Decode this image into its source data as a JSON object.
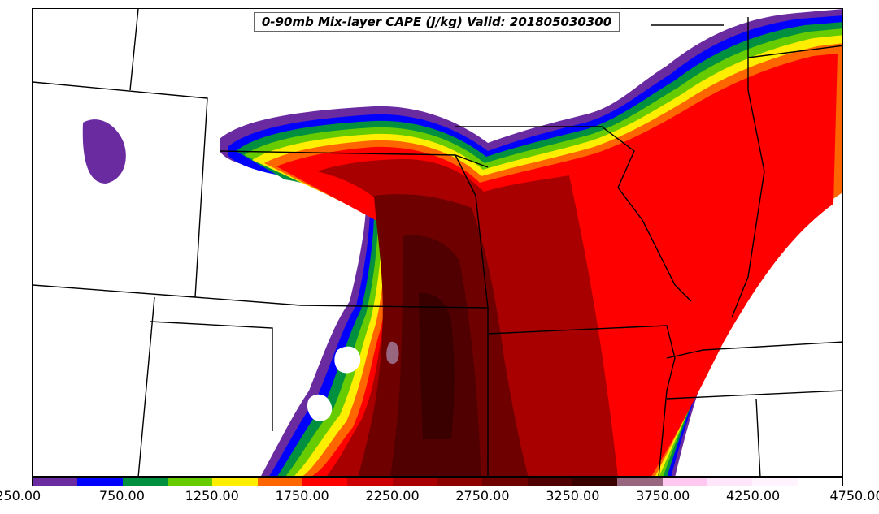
{
  "title": "0-90mb Mix-layer CAPE (J/kg) Valid: 201805030300",
  "colorbar": {
    "colors": [
      "#6a2aa0",
      "#0000ff",
      "#009040",
      "#66cc00",
      "#ffee00",
      "#ff6600",
      "#ff0000",
      "#cc0000",
      "#a80000",
      "#8c0000",
      "#6e0000",
      "#500000",
      "#3a0000",
      "#996680",
      "#ffc8f0",
      "#ffe6fa",
      "#fff4fd",
      "#ffffff"
    ],
    "tick_labels": [
      "250.00",
      "750.00",
      "1250.00",
      "1750.00",
      "2250.00",
      "2750.00",
      "3250.00",
      "3750.00",
      "4250.00",
      "4750.00"
    ]
  }
}
